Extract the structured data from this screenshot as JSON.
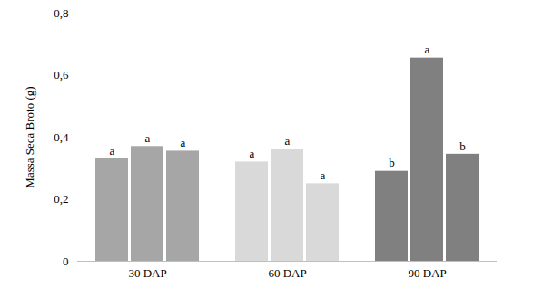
{
  "chart_data": {
    "type": "bar",
    "y_label": "Massa Seca Broto (g)",
    "categories": [
      "30 DAP",
      "60 DAP",
      "90 DAP"
    ],
    "series": [
      {
        "values": [
          0.33,
          0.32,
          0.29
        ],
        "colors": [
          "#a6a6a6",
          "#d9d9d9",
          "#808080"
        ],
        "annotations": [
          "a",
          "a",
          "b"
        ]
      },
      {
        "values": [
          0.37,
          0.36,
          0.655
        ],
        "colors": [
          "#a6a6a6",
          "#d9d9d9",
          "#808080"
        ],
        "annotations": [
          "a",
          "a",
          "a"
        ]
      },
      {
        "values": [
          0.355,
          0.25,
          0.345
        ],
        "colors": [
          "#a6a6a6",
          "#d9d9d9",
          "#808080"
        ],
        "annotations": [
          "a",
          "a",
          "b"
        ]
      }
    ],
    "ylim": [
      0,
      0.8
    ],
    "yticks": [
      0,
      {
        "value": 0.2,
        "label": "0,2"
      },
      {
        "value": 0.4,
        "label": "0,4"
      },
      {
        "value": 0.6,
        "label": "0,6"
      },
      {
        "value": 0.8,
        "label": "0,8"
      }
    ],
    "grid": false
  }
}
